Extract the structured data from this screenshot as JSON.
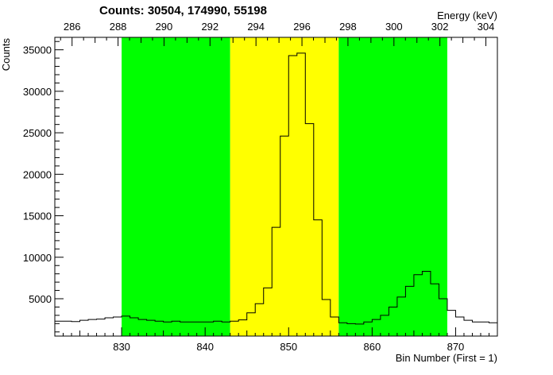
{
  "chart_data": {
    "type": "histogram",
    "title": "Counts:   30504,   174990,   55198",
    "xlabel": "Bin Number (First = 1)",
    "ylabel": "Counts",
    "x2label": "Energy (keV)",
    "xlim": [
      822,
      875
    ],
    "ylim": [
      500,
      36500
    ],
    "x2lim": [
      285.25,
      304.5
    ],
    "xticks": [
      830,
      840,
      850,
      860,
      870
    ],
    "yticks": [
      5000,
      10000,
      15000,
      20000,
      25000,
      30000,
      35000
    ],
    "x2ticks": [
      286,
      288,
      290,
      292,
      294,
      296,
      298,
      300,
      302,
      304
    ],
    "regions": [
      {
        "x0": 830,
        "x1": 843,
        "color": "#00ff00"
      },
      {
        "x0": 843,
        "x1": 856,
        "color": "#ffff00"
      },
      {
        "x0": 856,
        "x1": 869,
        "color": "#00ff00"
      }
    ],
    "bin_edges_start": 822,
    "bin_width": 1,
    "values": [
      2300,
      2300,
      2250,
      2400,
      2500,
      2550,
      2700,
      2800,
      2900,
      2700,
      2500,
      2400,
      2300,
      2200,
      2300,
      2200,
      2200,
      2200,
      2200,
      2300,
      2200,
      2300,
      2450,
      3300,
      4400,
      6300,
      13600,
      24600,
      34300,
      34600,
      26100,
      14500,
      4900,
      2800,
      2100,
      2000,
      1950,
      2200,
      2500,
      3000,
      4000,
      5200,
      6500,
      7900,
      8300,
      6800,
      5000,
      3600,
      2800,
      2400,
      2200,
      2200,
      2100
    ],
    "colors": {
      "line": "#000000",
      "background": "#ffffff"
    },
    "grid": false,
    "legend": "none"
  }
}
